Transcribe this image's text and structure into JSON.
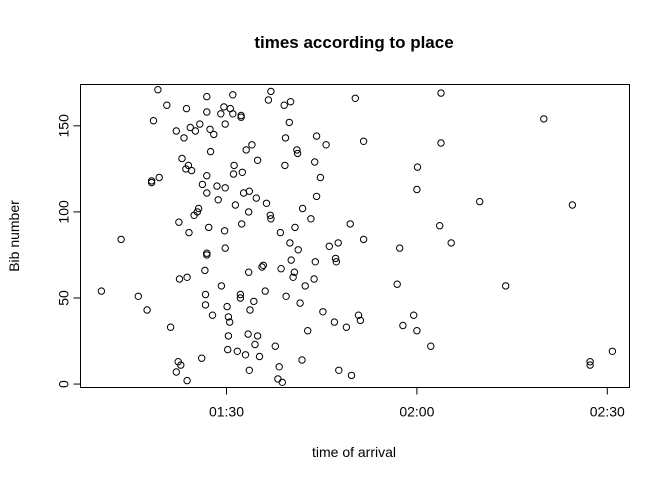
{
  "chart_data": {
    "type": "scatter",
    "title": "times according to place",
    "xlabel": "time of arrival",
    "ylabel": "Bib number",
    "x_unit": "minutes",
    "x_ticks": [
      {
        "value": 90,
        "label": "01:30"
      },
      {
        "value": 120,
        "label": "02:00"
      },
      {
        "value": 150,
        "label": "02:30"
      }
    ],
    "y_ticks": [
      0,
      50,
      100,
      150
    ],
    "xlim": [
      67.0,
      153.5
    ],
    "ylim": [
      -2,
      174
    ],
    "grid": false,
    "marker": "open-circle",
    "points": [
      [
        70.3,
        54
      ],
      [
        73.4,
        84
      ],
      [
        76.1,
        51
      ],
      [
        77.5,
        43
      ],
      [
        78.5,
        153
      ],
      [
        78.2,
        117
      ],
      [
        78.2,
        118
      ],
      [
        79.2,
        171
      ],
      [
        79.4,
        120
      ],
      [
        80.6,
        162
      ],
      [
        81.2,
        33
      ],
      [
        82.1,
        147
      ],
      [
        82.1,
        7
      ],
      [
        82.4,
        13
      ],
      [
        82.5,
        94
      ],
      [
        82.6,
        61
      ],
      [
        82.8,
        11
      ],
      [
        83.0,
        131
      ],
      [
        83.3,
        143
      ],
      [
        83.6,
        125
      ],
      [
        83.7,
        160
      ],
      [
        83.8,
        2
      ],
      [
        83.8,
        62
      ],
      [
        84.0,
        127
      ],
      [
        84.1,
        88
      ],
      [
        84.3,
        149
      ],
      [
        84.5,
        124
      ],
      [
        84.9,
        98
      ],
      [
        85.1,
        147
      ],
      [
        85.4,
        100
      ],
      [
        85.6,
        102
      ],
      [
        85.8,
        151
      ],
      [
        86.1,
        15
      ],
      [
        86.2,
        116
      ],
      [
        86.6,
        66
      ],
      [
        86.7,
        46
      ],
      [
        86.7,
        52
      ],
      [
        86.9,
        75
      ],
      [
        86.9,
        76
      ],
      [
        86.9,
        111
      ],
      [
        86.9,
        121
      ],
      [
        86.9,
        167
      ],
      [
        86.9,
        158
      ],
      [
        87.2,
        91
      ],
      [
        87.4,
        148
      ],
      [
        87.5,
        135
      ],
      [
        87.8,
        40
      ],
      [
        88.0,
        145
      ],
      [
        88.5,
        115
      ],
      [
        88.7,
        107
      ],
      [
        89.1,
        157
      ],
      [
        89.2,
        57
      ],
      [
        89.6,
        161
      ],
      [
        89.7,
        89
      ],
      [
        89.8,
        151
      ],
      [
        89.8,
        114
      ],
      [
        89.8,
        79
      ],
      [
        90.1,
        45
      ],
      [
        90.2,
        20
      ],
      [
        90.3,
        28
      ],
      [
        90.3,
        39
      ],
      [
        90.5,
        36
      ],
      [
        90.6,
        160
      ],
      [
        91.0,
        168
      ],
      [
        91.0,
        157
      ],
      [
        91.1,
        122
      ],
      [
        91.2,
        127
      ],
      [
        91.4,
        104
      ],
      [
        91.7,
        19
      ],
      [
        92.2,
        50
      ],
      [
        92.2,
        52
      ],
      [
        92.3,
        156
      ],
      [
        92.3,
        155
      ],
      [
        92.4,
        93
      ],
      [
        92.5,
        123
      ],
      [
        92.7,
        111
      ],
      [
        93.0,
        17
      ],
      [
        93.1,
        136
      ],
      [
        93.4,
        29
      ],
      [
        93.5,
        65
      ],
      [
        93.5,
        100
      ],
      [
        93.6,
        8
      ],
      [
        93.6,
        112
      ],
      [
        93.7,
        43
      ],
      [
        94.0,
        139
      ],
      [
        94.3,
        48
      ],
      [
        94.5,
        23
      ],
      [
        94.7,
        108
      ],
      [
        94.9,
        130
      ],
      [
        94.9,
        28
      ],
      [
        95.2,
        16
      ],
      [
        95.6,
        68
      ],
      [
        95.8,
        69
      ],
      [
        96.1,
        54
      ],
      [
        96.3,
        105
      ],
      [
        96.6,
        165
      ],
      [
        96.9,
        98
      ],
      [
        97.0,
        96
      ],
      [
        97.0,
        170
      ],
      [
        97.7,
        22
      ],
      [
        98.1,
        3
      ],
      [
        98.3,
        10
      ],
      [
        98.5,
        88
      ],
      [
        98.6,
        67
      ],
      [
        98.8,
        1
      ],
      [
        99.1,
        162
      ],
      [
        99.2,
        127
      ],
      [
        99.3,
        143
      ],
      [
        99.4,
        51
      ],
      [
        99.9,
        152
      ],
      [
        100.0,
        82
      ],
      [
        100.1,
        164
      ],
      [
        100.2,
        72
      ],
      [
        100.5,
        62
      ],
      [
        100.7,
        65
      ],
      [
        100.8,
        91
      ],
      [
        101.1,
        136
      ],
      [
        101.2,
        134
      ],
      [
        101.3,
        78
      ],
      [
        101.6,
        47
      ],
      [
        101.9,
        14
      ],
      [
        102.0,
        102
      ],
      [
        102.4,
        57
      ],
      [
        102.8,
        31
      ],
      [
        103.3,
        96
      ],
      [
        103.8,
        61
      ],
      [
        103.9,
        129
      ],
      [
        104.0,
        71
      ],
      [
        104.2,
        109
      ],
      [
        104.2,
        144
      ],
      [
        104.8,
        120
      ],
      [
        105.2,
        42
      ],
      [
        105.7,
        139
      ],
      [
        106.2,
        80
      ],
      [
        107.0,
        36
      ],
      [
        107.2,
        73
      ],
      [
        107.3,
        71
      ],
      [
        107.6,
        82
      ],
      [
        107.7,
        8
      ],
      [
        108.9,
        33
      ],
      [
        109.5,
        93
      ],
      [
        109.7,
        5
      ],
      [
        110.3,
        166
      ],
      [
        110.8,
        40
      ],
      [
        111.6,
        141
      ],
      [
        111.6,
        84
      ],
      [
        111.1,
        37
      ],
      [
        116.9,
        58
      ],
      [
        117.3,
        79
      ],
      [
        117.8,
        34
      ],
      [
        119.5,
        40
      ],
      [
        120.0,
        31
      ],
      [
        120.0,
        113
      ],
      [
        120.1,
        126
      ],
      [
        122.2,
        22
      ],
      [
        123.6,
        92
      ],
      [
        123.8,
        140
      ],
      [
        123.8,
        169
      ],
      [
        125.4,
        82
      ],
      [
        129.9,
        106
      ],
      [
        134.0,
        57
      ],
      [
        140.0,
        154
      ],
      [
        144.5,
        104
      ],
      [
        147.3,
        11
      ],
      [
        147.3,
        13
      ],
      [
        150.8,
        19
      ]
    ]
  }
}
